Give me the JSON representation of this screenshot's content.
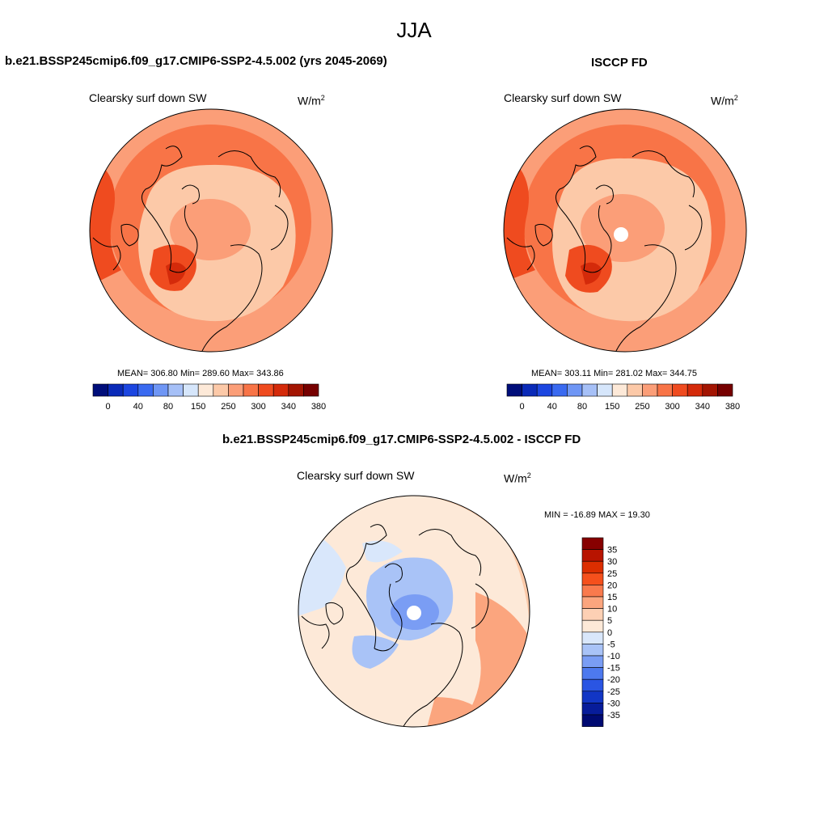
{
  "main_title": "JJA",
  "panels": [
    {
      "title": "b.e21.BSSP245cmip6.f09_g17.CMIP6-SSP2-4.5.002 (yrs 2045-2069)",
      "variable": "Clearsky surf down SW",
      "units_base": "W/m",
      "units_exp": "2",
      "stats_text": "MEAN= 306.80  Min= 289.60  Max= 343.86"
    },
    {
      "title": "ISCCP FD",
      "variable": "Clearsky surf down SW",
      "units_base": "W/m",
      "units_exp": "2",
      "stats_text": "MEAN= 303.11  Min= 281.02  Max= 344.75"
    },
    {
      "title": "b.e21.BSSP245cmip6.f09_g17.CMIP6-SSP2-4.5.002 - ISCCP FD",
      "variable": "Clearsky surf down SW",
      "units_base": "W/m",
      "units_exp": "2",
      "stats_text": "MIN = -16.89 MAX =  19.30"
    }
  ],
  "colorbar_horizontal": {
    "colors": [
      "#000e7a",
      "#0a2ab8",
      "#1c46e0",
      "#3a6af0",
      "#6f96f5",
      "#a6c0f7",
      "#d6e6fb",
      "#fde9d8",
      "#fcc9a8",
      "#fb9e78",
      "#f87447",
      "#ef4b1f",
      "#d42a0a",
      "#a31502",
      "#760000"
    ],
    "tick_labels": [
      "0",
      "40",
      "80",
      "150",
      "250",
      "300",
      "340",
      "380"
    ]
  },
  "colorbar_vertical": {
    "colors": [
      "#870000",
      "#b81400",
      "#dc2e00",
      "#f5501c",
      "#f97a4d",
      "#fba57e",
      "#fdd0b4",
      "#fde9d8",
      "#d9e7fb",
      "#a9c3f7",
      "#7a9df4",
      "#4d79ee",
      "#2a55e3",
      "#1236c5",
      "#071c9a",
      "#000a72"
    ],
    "tick_labels": [
      "35",
      "30",
      "25",
      "20",
      "15",
      "10",
      "5",
      "0",
      "-5",
      "-10",
      "-15",
      "-20",
      "-25",
      "-30",
      "-35"
    ]
  },
  "map_colors": {
    "base_a": "#fb9e78",
    "ring_a": "#f87447",
    "mid_a": "#fcc9a8",
    "hot_a": "#ef4b1f",
    "peak_a": "#d42a0a",
    "diff_base": "#fde9d8",
    "diff_warm": "#fcc9a8",
    "diff_warmer": "#fba57e",
    "diff_cool": "#d9e7fb",
    "diff_cooler": "#a9c3f7",
    "diff_cold": "#7a9df4"
  }
}
